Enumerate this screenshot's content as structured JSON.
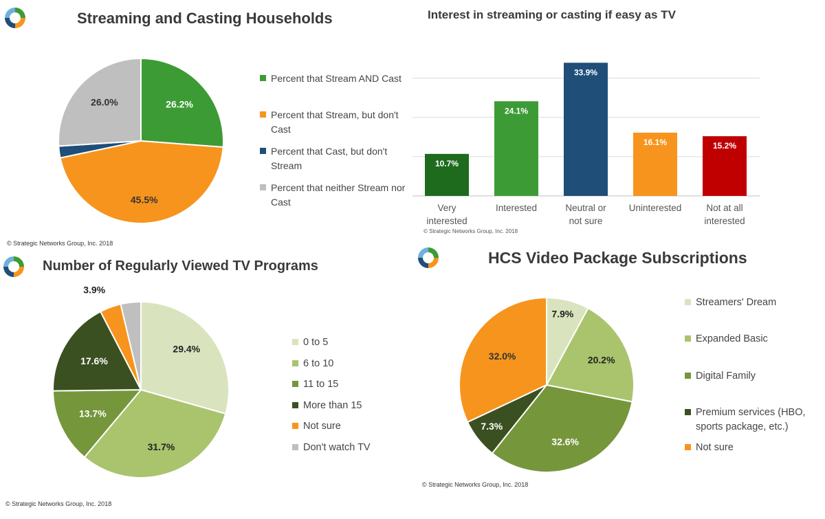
{
  "chart_data": [
    {
      "id": "households",
      "type": "pie",
      "title": "Streaming and Casting Households",
      "slices": [
        {
          "name": "Percent that Stream AND Cast",
          "value": 26.2,
          "label": "26.2%",
          "color": "#3d9b35"
        },
        {
          "name": "Percent that Stream, but don't Cast",
          "value": 45.5,
          "label": "45.5%",
          "color": "#f7941d"
        },
        {
          "name": "Percent that Cast, but don't Stream",
          "value": 2.3,
          "label": "2.3%",
          "color": "#1f4e79"
        },
        {
          "name": "Percent that neither Stream nor Cast",
          "value": 26.0,
          "label": "26.0%",
          "color": "#bfbfbf"
        }
      ],
      "legend_placement": "right",
      "copyright": "© Strategic Networks Group, Inc. 2018"
    },
    {
      "id": "interest",
      "type": "bar",
      "title": "Interest in streaming or casting if easy as TV",
      "categories": [
        "Very interested",
        "Interested",
        "Neutral or not sure",
        "Uninterested",
        "Not at all interested"
      ],
      "values": [
        10.7,
        24.1,
        33.9,
        16.1,
        15.2
      ],
      "labels": [
        "10.7%",
        "24.1%",
        "33.9%",
        "16.1%",
        "15.2%"
      ],
      "colors": [
        "#1e6b1e",
        "#3d9b35",
        "#1f4e79",
        "#f7941d",
        "#c00000"
      ],
      "ylim": [
        0,
        35
      ],
      "grid": true,
      "copyright": "© Strategic Networks Group, Inc. 2018"
    },
    {
      "id": "programs",
      "type": "pie",
      "title": "Number of Regularly Viewed TV Programs",
      "slices": [
        {
          "name": "0 to 5",
          "value": 29.4,
          "label": "29.4%",
          "color": "#d9e4bf"
        },
        {
          "name": "6 to 10",
          "value": 31.7,
          "label": "31.7%",
          "color": "#a9c46c"
        },
        {
          "name": "11 to 15",
          "value": 13.7,
          "label": "13.7%",
          "color": "#76963c"
        },
        {
          "name": "More than 15",
          "value": 17.6,
          "label": "17.6%",
          "color": "#3b5020"
        },
        {
          "name": "Not sure",
          "value": 3.9,
          "label": "3.9%",
          "color": "#f7941d"
        },
        {
          "name": "Don't watch TV",
          "value": 3.7,
          "label": "3.7%",
          "color": "#bfbfbf"
        }
      ],
      "legend_placement": "right",
      "copyright": "© Strategic Networks Group, Inc. 2018"
    },
    {
      "id": "packages",
      "type": "pie",
      "title": "HCS Video Package Subscriptions",
      "slices": [
        {
          "name": "Streamers' Dream",
          "value": 7.9,
          "label": "7.9%",
          "color": "#d9e4bf"
        },
        {
          "name": "Expanded Basic",
          "value": 20.2,
          "label": "20.2%",
          "color": "#a9c46c"
        },
        {
          "name": "Digital Family",
          "value": 32.6,
          "label": "32.6%",
          "color": "#76963c"
        },
        {
          "name": "Premium services (HBO, sports package, etc.)",
          "value": 7.3,
          "label": "7.3%",
          "color": "#3b5020"
        },
        {
          "name": "Not sure",
          "value": 32.0,
          "label": "32.0%",
          "color": "#f7941d"
        }
      ],
      "legend_placement": "right",
      "copyright": "© Strategic Networks Group, Inc. 2018"
    }
  ]
}
